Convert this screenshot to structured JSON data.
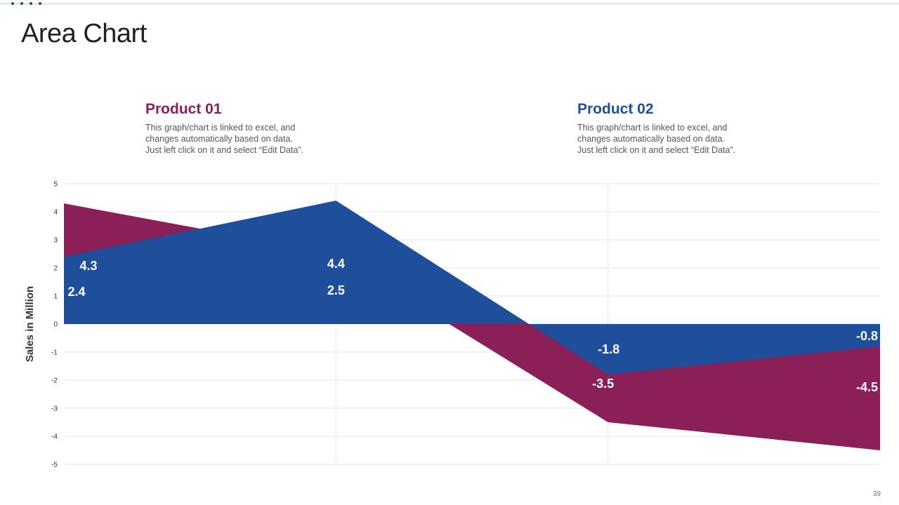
{
  "page": {
    "title": "Area Chart",
    "page_number": "39"
  },
  "products": [
    {
      "name": "Product 01",
      "description": [
        "This graph/chart is linked to excel, and",
        "changes automatically based on data.",
        "Just left click on it and select “Edit Data”."
      ]
    },
    {
      "name": "Product 02",
      "description": [
        "This graph/chart is linked to excel, and",
        "changes automatically based on data.",
        "Just left click on it and select “Edit Data”."
      ]
    }
  ],
  "colors": {
    "product_01": "#8b1f57",
    "product_02": "#1f4e9a",
    "grid": "#e6e6e6",
    "accent": "#1f4e9a"
  },
  "chart_data": {
    "type": "area",
    "title": "",
    "xlabel": "",
    "ylabel": "Sales in Million",
    "ylim": [
      -5,
      5
    ],
    "yticks": [
      5,
      4,
      3,
      2,
      1,
      0,
      -1,
      -2,
      -3,
      -4,
      -5
    ],
    "x": [
      1,
      2,
      3,
      4
    ],
    "series": [
      {
        "name": "Product 01",
        "values": [
          4.3,
          2.5,
          -3.5,
          -4.5
        ],
        "labels": [
          "4.3",
          "2.5",
          "-3.5",
          "-4.5"
        ]
      },
      {
        "name": "Product 02",
        "values": [
          2.4,
          4.4,
          -1.8,
          -0.8
        ],
        "labels": [
          "2.4",
          "4.4",
          "-1.8",
          "-0.8"
        ]
      }
    ]
  }
}
